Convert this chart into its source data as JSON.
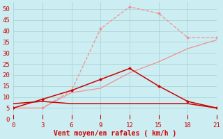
{
  "x": [
    0,
    3,
    6,
    9,
    12,
    15,
    18,
    21
  ],
  "line1_y": [
    5,
    5,
    13,
    41,
    51,
    48,
    37,
    37
  ],
  "line2_y": [
    5,
    5,
    12,
    14,
    21,
    26,
    32,
    36
  ],
  "line3_y": [
    5,
    9,
    13,
    18,
    23,
    15,
    8,
    5
  ],
  "line4_y": [
    7,
    8,
    7,
    7,
    7,
    7,
    7,
    5
  ],
  "line1_color": "#f09090",
  "line2_color": "#f09090",
  "line3_color": "#cc0000",
  "line4_color": "#cc0000",
  "bg_color": "#cceef2",
  "grid_color": "#aad4da",
  "xlabel": "Vent moyen/en rafales ( km/h )",
  "xlabel_color": "#cc0000",
  "xticks": [
    0,
    3,
    6,
    9,
    12,
    15,
    18,
    21
  ],
  "yticks": [
    0,
    5,
    10,
    15,
    20,
    25,
    30,
    35,
    40,
    45,
    50
  ],
  "ylim": [
    0,
    53
  ],
  "xlim": [
    0,
    21
  ]
}
